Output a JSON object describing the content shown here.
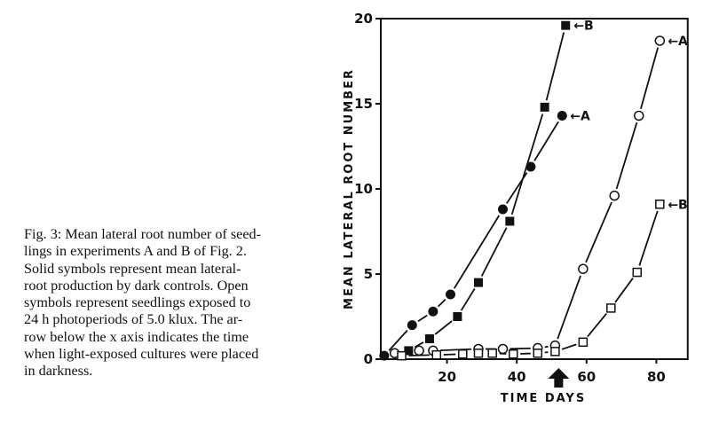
{
  "caption": {
    "lines": [
      "Fig. 3: Mean lateral root number of seed-",
      "lings in experiments A and B of Fig. 2.",
      "Solid symbols represent mean lateral-",
      "root production by dark controls. Open",
      "symbols represent seedlings exposed to",
      "24 h photoperiods of 5.0 klux. The ar-",
      "row below the x axis indicates the time",
      "when light-exposed cultures were placed",
      "in darkness."
    ]
  },
  "chart_data": {
    "type": "line",
    "title": "",
    "xlabel": "TIME DAYS",
    "ylabel": "MEAN LATERAL ROOT NUMBER",
    "xlim": [
      0,
      89
    ],
    "ylim": [
      0,
      20
    ],
    "xticks": [
      20,
      40,
      60,
      80
    ],
    "yticks": [
      0,
      5,
      10,
      15,
      20
    ],
    "grid": false,
    "annotation_arrow_day": 52,
    "series": [
      {
        "name": "A dark control",
        "label": "A",
        "marker": "filled-circle",
        "x": [
          2,
          10,
          16,
          21,
          36,
          44,
          53
        ],
        "y": [
          0.2,
          2.0,
          2.8,
          3.8,
          8.8,
          11.3,
          14.3
        ]
      },
      {
        "name": "B dark control",
        "label": "B",
        "marker": "filled-square",
        "x": [
          9,
          15,
          23,
          29,
          38,
          48,
          54
        ],
        "y": [
          0.5,
          1.2,
          2.5,
          4.5,
          8.1,
          14.8,
          19.6
        ]
      },
      {
        "name": "A light-exposed",
        "label": "A",
        "marker": "open-circle",
        "x": [
          5,
          12,
          16,
          29,
          36,
          46,
          51,
          59,
          68,
          75,
          81
        ],
        "y": [
          0.35,
          0.5,
          0.5,
          0.6,
          0.6,
          0.65,
          0.8,
          5.3,
          9.6,
          14.3,
          18.7
        ]
      },
      {
        "name": "B light-exposed",
        "label": "B",
        "marker": "open-square",
        "x": [
          7,
          17,
          24.5,
          29,
          33,
          39,
          46,
          51,
          59,
          67,
          74.5,
          81
        ],
        "y": [
          0.2,
          0.25,
          0.3,
          0.35,
          0.35,
          0.3,
          0.35,
          0.45,
          1.0,
          3.0,
          5.1,
          9.1
        ]
      }
    ]
  }
}
